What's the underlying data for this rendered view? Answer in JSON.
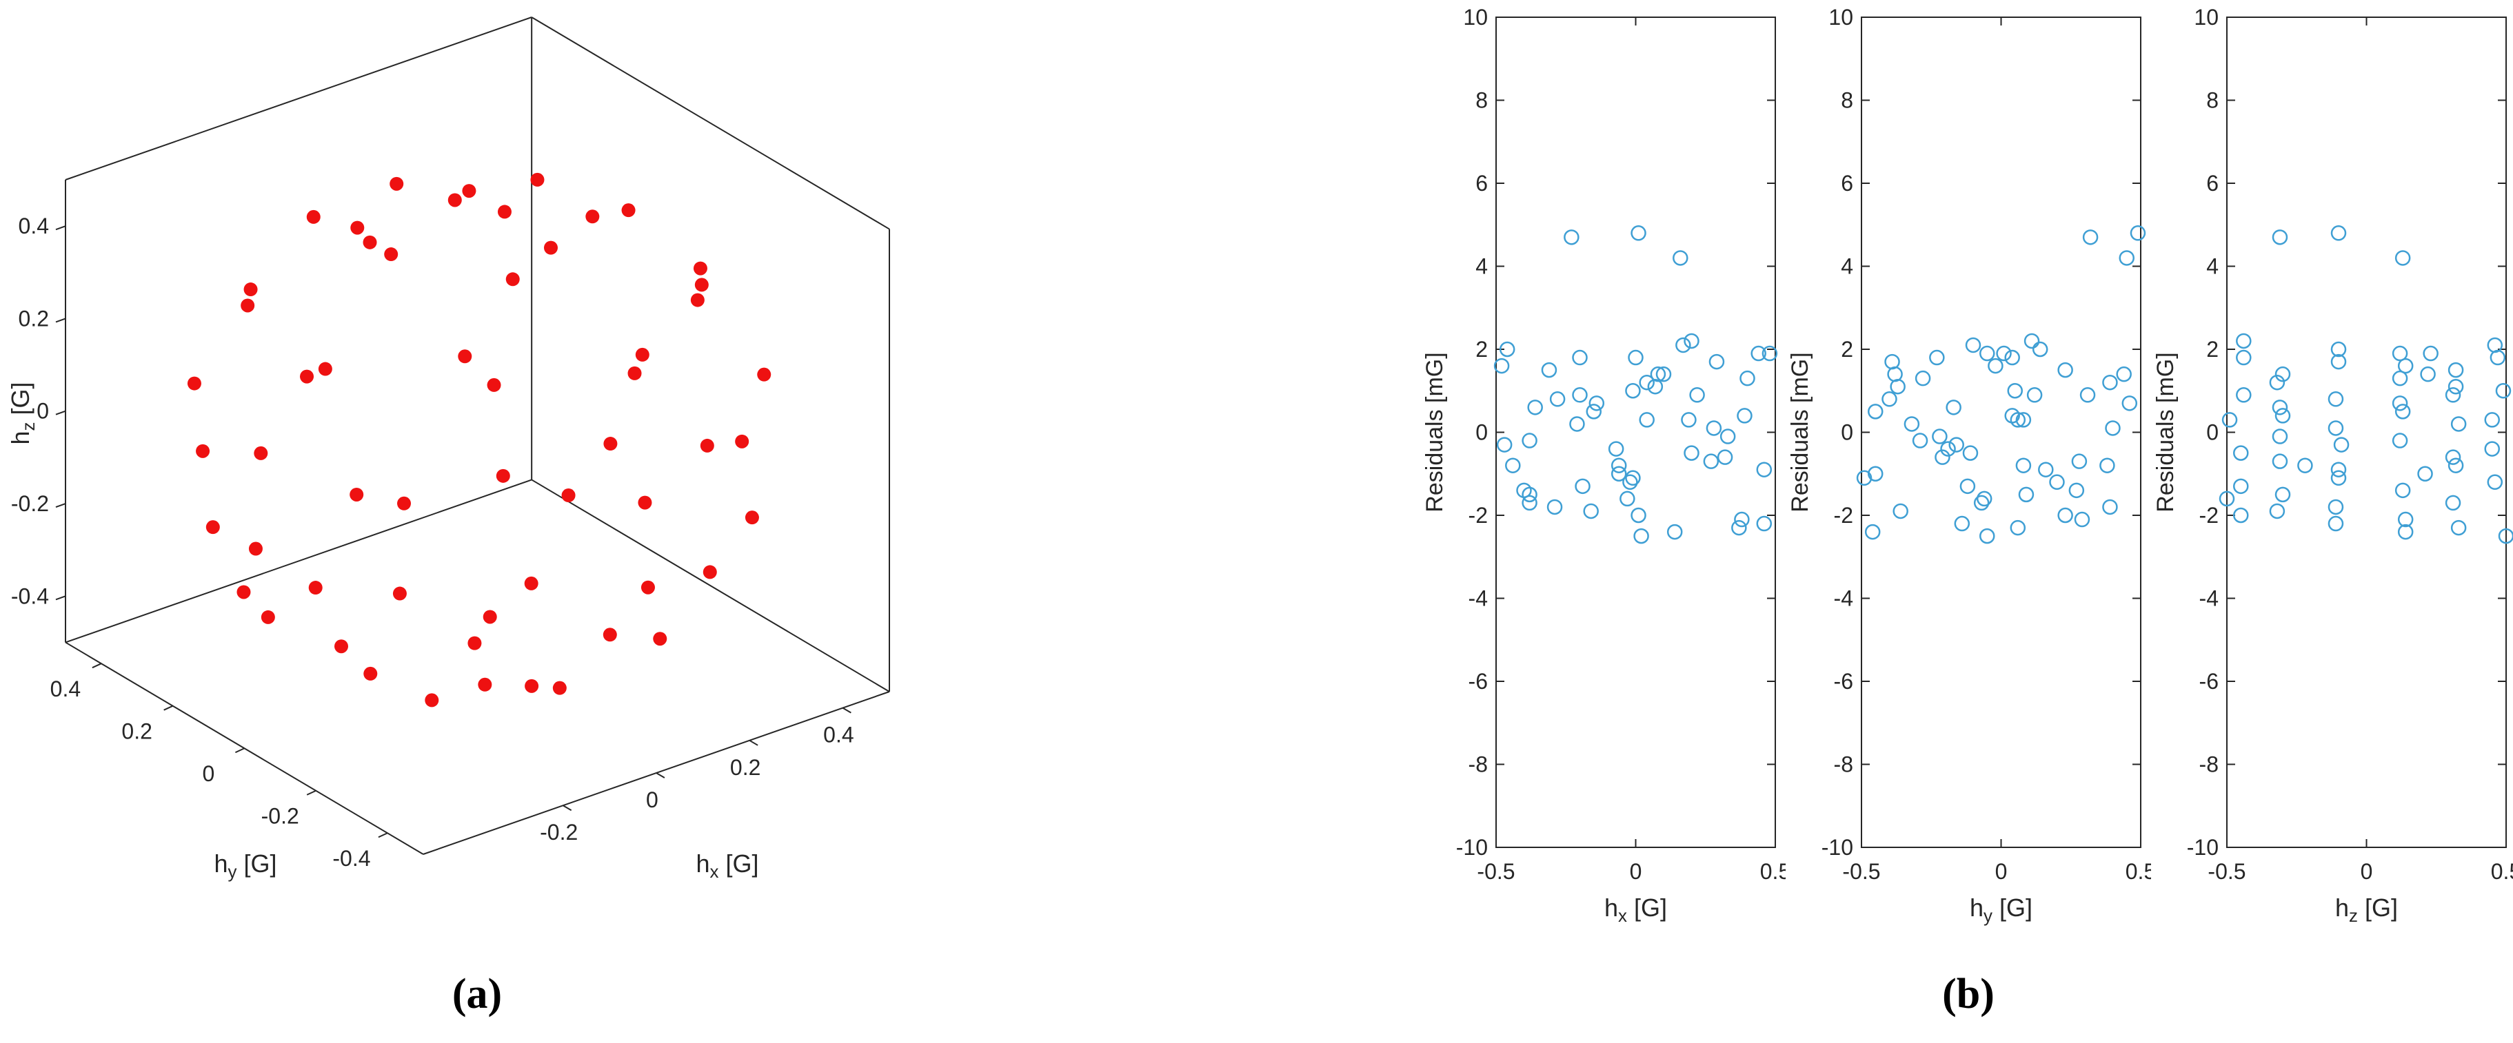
{
  "figure": {
    "caption_a": "(a)",
    "caption_b": "(b)",
    "colors": {
      "marker3d": "#ee1111",
      "marker2d": "#3f9fd4",
      "axis": "#262626",
      "background": "#ffffff"
    }
  },
  "chart_data": [
    {
      "type": "scatter",
      "subtype": "scatter3d",
      "title": "",
      "xlabel": "h_x [G]",
      "ylabel": "h_y [G]",
      "zlabel": "h_z [G]",
      "xlim": [
        -0.5,
        0.5
      ],
      "ylim": [
        -0.5,
        0.5
      ],
      "zlim": [
        -0.5,
        0.5
      ],
      "xticks": [
        -0.2,
        0,
        0.2,
        0.4
      ],
      "xtick_labels": [
        "-0.2",
        "0",
        "0.2",
        "0.4"
      ],
      "yticks": [
        0.4,
        0.2,
        0,
        -0.2,
        -0.4
      ],
      "ytick_labels": [
        "0.4",
        "0.2",
        "0",
        "-0.2",
        "-0.4"
      ],
      "zticks": [
        0.4,
        0.2,
        0,
        -0.2,
        -0.4
      ],
      "ztick_labels": [
        "0.4",
        "0.2",
        "0",
        "-0.2",
        "-0.4"
      ],
      "grid": false,
      "legend": false,
      "view": {
        "azimuth": -37.5,
        "elevation": 30
      },
      "marker": {
        "style": "filled-circle",
        "color": "#ee1111",
        "radius_px": 10
      },
      "points": [
        [
          0.19,
          0.08,
          0.45
        ],
        [
          -0.02,
          0.2,
          0.46
        ],
        [
          -0.2,
          0.04,
          0.47
        ],
        [
          -0.07,
          -0.19,
          0.45
        ],
        [
          0.17,
          -0.1,
          0.46
        ],
        [
          0.37,
          0.06,
          0.33
        ],
        [
          0.22,
          0.31,
          0.31
        ],
        [
          -0.06,
          0.38,
          0.32
        ],
        [
          -0.31,
          0.23,
          0.32
        ],
        [
          -0.38,
          -0.07,
          0.31
        ],
        [
          -0.21,
          -0.32,
          0.33
        ],
        [
          0.07,
          -0.37,
          0.32
        ],
        [
          0.32,
          -0.21,
          0.31
        ],
        [
          0.48,
          0.01,
          0.12
        ],
        [
          0.38,
          0.29,
          0.14
        ],
        [
          0.16,
          0.45,
          0.13
        ],
        [
          -0.14,
          0.46,
          0.12
        ],
        [
          -0.4,
          0.27,
          0.13
        ],
        [
          -0.48,
          -0.02,
          0.14
        ],
        [
          -0.38,
          -0.29,
          0.12
        ],
        [
          -0.15,
          -0.45,
          0.13
        ],
        [
          0.14,
          -0.46,
          0.14
        ],
        [
          0.4,
          -0.28,
          0.12
        ],
        [
          0.46,
          0.16,
          -0.1
        ],
        [
          0.28,
          0.4,
          -0.11
        ],
        [
          0.01,
          0.49,
          -0.1
        ],
        [
          -0.29,
          0.39,
          -0.11
        ],
        [
          -0.46,
          0.14,
          -0.1
        ],
        [
          -0.47,
          -0.16,
          -0.09
        ],
        [
          -0.28,
          -0.4,
          -0.11
        ],
        [
          -0.01,
          -0.49,
          -0.1
        ],
        [
          0.29,
          -0.39,
          -0.1
        ],
        [
          0.46,
          -0.14,
          -0.11
        ],
        [
          0.39,
          0.04,
          -0.3
        ],
        [
          0.27,
          0.28,
          -0.31
        ],
        [
          0.04,
          0.39,
          -0.32
        ],
        [
          -0.23,
          0.32,
          -0.31
        ],
        [
          -0.38,
          0.09,
          -0.3
        ],
        [
          -0.36,
          -0.17,
          -0.31
        ],
        [
          -0.16,
          -0.36,
          -0.32
        ],
        [
          0.1,
          -0.38,
          -0.3
        ],
        [
          0.33,
          -0.22,
          -0.31
        ],
        [
          0.2,
          0.11,
          -0.44
        ],
        [
          0.01,
          0.23,
          -0.45
        ],
        [
          -0.2,
          0.12,
          -0.44
        ],
        [
          -0.19,
          -0.12,
          -0.45
        ],
        [
          0.0,
          -0.23,
          -0.44
        ],
        [
          0.2,
          -0.11,
          -0.45
        ],
        [
          0.04,
          0.06,
          -0.49
        ],
        [
          -0.03,
          -0.06,
          -0.5
        ],
        [
          -0.01,
          0.05,
          0.49
        ],
        [
          0.02,
          -0.05,
          0.5
        ],
        [
          0.44,
          -0.05,
          0.23
        ],
        [
          -0.44,
          0.08,
          -0.22
        ],
        [
          0.08,
          0.44,
          0.22
        ],
        [
          -0.06,
          -0.45,
          0.21
        ]
      ]
    },
    {
      "type": "scatter",
      "subtype": "residual-panels",
      "ylabel": "Residuals [mG]",
      "ylim": [
        -10,
        10
      ],
      "yticks": [
        -10,
        -8,
        -6,
        -4,
        -2,
        0,
        2,
        4,
        6,
        8,
        10
      ],
      "ytick_labels": [
        "-10",
        "-8",
        "-6",
        "-4",
        "-2",
        "0",
        "2",
        "4",
        "6",
        "8",
        "10"
      ],
      "xlim": [
        -0.5,
        0.5
      ],
      "xticks": [
        -0.5,
        0,
        0.5
      ],
      "xtick_labels": [
        "-0.5",
        "0",
        "0.5"
      ],
      "grid": false,
      "legend": false,
      "marker": {
        "style": "open-circle",
        "color": "#3f9fd4",
        "radius_px": 10
      },
      "subplots": [
        {
          "xlabel": "h_x [G]",
          "x_component": 0
        },
        {
          "xlabel": "h_y [G]",
          "x_component": 1
        },
        {
          "xlabel": "h_z [G]",
          "x_component": 2
        }
      ],
      "note": "x values of each panel are the corresponding components of chart_data[0].points",
      "residuals": [
        0.3,
        -1.2,
        1.8,
        -0.4,
        2.1,
        -2.3,
        0.9,
        -0.8,
        1.5,
        -1.7,
        0.2,
        1.1,
        -0.6,
        1.9,
        -2.1,
        4.2,
        0.7,
        -1.4,
        1.6,
        -0.2,
        0.5,
        -2.4,
        1.3,
        -0.9,
        0.1,
        4.8,
        -1.8,
        2.0,
        -0.3,
        0.8,
        -1.1,
        1.7,
        -2.2,
        0.4,
        -0.7,
        1.2,
        4.7,
        -1.5,
        0.6,
        -1.9,
        1.4,
        -0.1,
        2.2,
        -2.0,
        0.9,
        -1.3,
        1.8,
        -0.5,
        0.3,
        -1.6,
        1.0,
        -2.5,
        1.9,
        -0.8,
        1.4,
        -1.0
      ]
    }
  ]
}
